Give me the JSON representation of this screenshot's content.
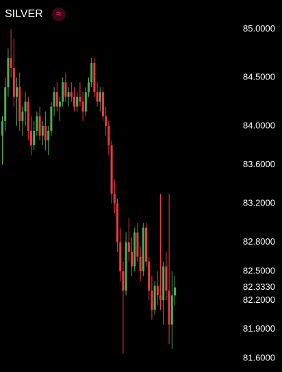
{
  "chart_data": {
    "type": "candlestick",
    "title": "SILVER",
    "icon": "≈",
    "up_color": "#4caf50",
    "down_color": "#f23645",
    "ylim": [
      81.46,
      85.3
    ],
    "yticks": [
      {
        "value": 85.0,
        "label": "85.0000"
      },
      {
        "value": 84.5,
        "label": "84.5000"
      },
      {
        "value": 84.0,
        "label": "84.0000"
      },
      {
        "value": 83.6,
        "label": "83.6000"
      },
      {
        "value": 83.2,
        "label": "83.2000"
      },
      {
        "value": 82.8,
        "label": "82.8000"
      },
      {
        "value": 82.5,
        "label": "82.5000"
      },
      {
        "value": 82.2,
        "label": "82.2000"
      },
      {
        "value": 81.9,
        "label": "81.9000"
      },
      {
        "value": 81.6,
        "label": "81.6000"
      }
    ],
    "last_price": {
      "value": 82.333,
      "label": "82.3330"
    },
    "open": [
      83.9,
      84.05,
      84.4,
      84.7,
      84.6,
      84.3,
      84.4,
      84.05,
      84.15,
      84.25,
      83.95,
      83.8,
      83.95,
      84.1,
      83.9,
      84.0,
      83.85,
      83.95,
      84.2,
      84.35,
      84.2,
      84.25,
      84.45,
      84.3,
      84.35,
      84.3,
      84.2,
      84.3,
      84.25,
      84.15,
      84.35,
      84.45,
      84.65,
      84.35,
      84.25,
      84.35,
      84.1,
      84.0,
      83.8,
      83.3,
      83.2,
      82.8,
      82.5,
      82.3,
      82.8,
      82.7,
      82.55,
      82.9,
      82.65,
      82.5,
      82.95,
      82.6,
      82.3,
      82.1,
      82.35,
      82.25,
      82.2,
      82.55,
      82.3,
      81.95,
      82.25
    ],
    "high": [
      84.1,
      84.5,
      84.8,
      85.0,
      84.9,
      84.5,
      84.55,
      84.2,
      84.35,
      84.3,
      84.1,
      84.05,
      84.15,
      84.2,
      84.05,
      84.15,
      84.0,
      84.25,
      84.4,
      84.45,
      84.3,
      84.5,
      84.55,
      84.4,
      84.45,
      84.4,
      84.35,
      84.45,
      84.35,
      84.4,
      84.5,
      84.7,
      84.7,
      84.45,
      84.4,
      84.4,
      84.2,
      84.05,
      83.85,
      83.45,
      83.25,
      82.95,
      82.6,
      82.9,
      83.05,
      82.85,
      82.95,
      83.0,
      82.75,
      83.0,
      83.0,
      82.65,
      82.45,
      82.4,
      82.5,
      83.3,
      82.6,
      82.7,
      83.3,
      82.5,
      82.45
    ],
    "low": [
      83.6,
      83.95,
      84.3,
      84.5,
      84.2,
      84.0,
      83.95,
      83.9,
      84.0,
      83.85,
      83.7,
      83.75,
      83.9,
      83.85,
      83.8,
      83.75,
      83.7,
      83.9,
      84.1,
      84.15,
      84.05,
      84.2,
      84.25,
      84.2,
      84.25,
      84.15,
      84.15,
      84.2,
      84.05,
      84.1,
      84.3,
      84.4,
      84.3,
      84.2,
      84.15,
      84.05,
      83.9,
      83.7,
      83.2,
      83.1,
      82.7,
      82.4,
      81.65,
      82.25,
      82.6,
      82.45,
      82.5,
      82.6,
      82.4,
      82.45,
      82.55,
      82.2,
      82.0,
      82.05,
      82.15,
      82.1,
      81.95,
      82.2,
      81.75,
      81.7,
      82.15
    ],
    "close": [
      84.05,
      84.4,
      84.7,
      84.6,
      84.3,
      84.4,
      84.05,
      84.15,
      84.25,
      83.95,
      83.8,
      83.95,
      84.1,
      83.9,
      84.0,
      83.85,
      83.95,
      84.2,
      84.35,
      84.2,
      84.25,
      84.45,
      84.3,
      84.35,
      84.3,
      84.2,
      84.3,
      84.25,
      84.15,
      84.35,
      84.45,
      84.65,
      84.35,
      84.25,
      84.35,
      84.1,
      84.0,
      83.8,
      83.3,
      83.2,
      82.8,
      82.5,
      82.3,
      82.8,
      82.7,
      82.55,
      82.9,
      82.65,
      82.5,
      82.95,
      82.6,
      82.3,
      82.1,
      82.35,
      82.25,
      82.2,
      82.55,
      82.3,
      81.95,
      82.25,
      82.333
    ]
  }
}
